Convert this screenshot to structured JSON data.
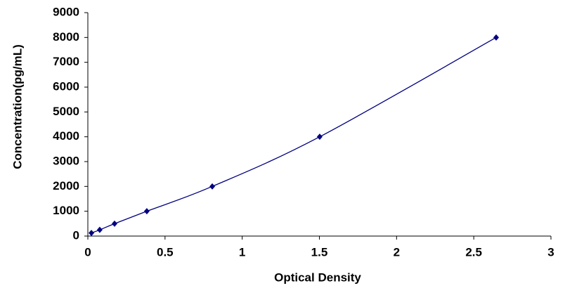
{
  "chart_data": {
    "type": "scatter",
    "x_label": "Optical Density",
    "y_label": "Concentration(pg/mL)",
    "x": [
      0.023,
      0.077,
      0.173,
      0.382,
      0.806,
      1.502,
      2.645
    ],
    "values": [
      125,
      250,
      500,
      1000,
      2000,
      4000,
      8000
    ],
    "color": "#000080",
    "smooth_line": true,
    "xlim": [
      0,
      3
    ],
    "xticks": [
      0,
      0.5,
      1,
      1.5,
      2,
      2.5,
      3
    ],
    "ylim": [
      0,
      9000
    ],
    "yticks": [
      0,
      1000,
      2000,
      3000,
      4000,
      5000,
      6000,
      7000,
      8000,
      9000
    ]
  }
}
